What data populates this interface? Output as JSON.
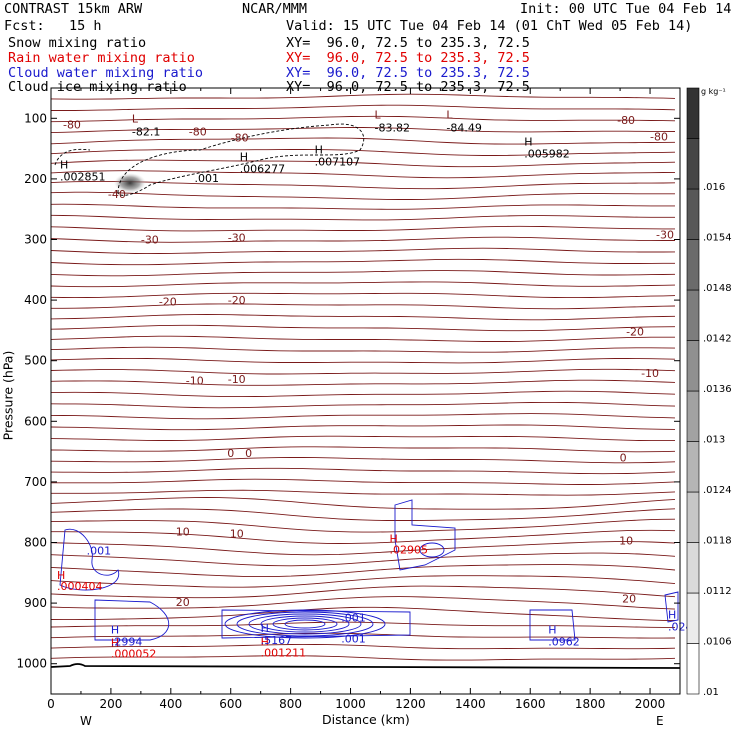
{
  "header": {
    "model": "CONTRAST 15km ARW",
    "org": "NCAR/MMM",
    "init": "Init: 00 UTC Tue 04 Feb 14",
    "fcst": "Fcst:   15 h",
    "valid": "Valid: 15 UTC Tue 04 Feb 14 (01 ChT Wed 05 Feb 14)"
  },
  "fields": [
    {
      "name": "Snow mixing ratio",
      "xy": "XY=  96.0, 72.5 to 235.3, 72.5",
      "color": "#000000"
    },
    {
      "name": "Rain water mixing ratio",
      "xy": "XY=  96.0, 72.5 to 235.3, 72.5",
      "color": "#e00000"
    },
    {
      "name": "Cloud water mixing ratio",
      "xy": "XY=  96.0, 72.5 to 235.3, 72.5",
      "color": "#1a1acd"
    },
    {
      "name": "Cloud ice mixing ratio",
      "xy": "XY=  96.0, 72.5 to 235.3, 72.5",
      "color": "#000000"
    }
  ],
  "chart_data": {
    "type": "cross-section contour",
    "xlabel": "Distance (km)",
    "ylabel": "Pressure (hPa)",
    "xlim": [
      0,
      2100
    ],
    "ylim": [
      1050,
      50
    ],
    "x_ticks": [
      0,
      200,
      400,
      600,
      800,
      1000,
      1200,
      1400,
      1600,
      1800,
      2000
    ],
    "y_ticks": [
      100,
      200,
      300,
      400,
      500,
      600,
      700,
      800,
      900,
      1000
    ],
    "x_end_labels": {
      "left": "W",
      "right": "E"
    },
    "colorbar": {
      "unit": "g kg⁻¹",
      "labels": [
        ".01",
        ".0106",
        ".0112",
        ".0118",
        ".0124",
        ".013",
        ".0136",
        ".0142",
        ".0148",
        ".0154",
        ".016"
      ],
      "color_low": "#ffffff",
      "color_high": "#333333"
    },
    "temperature_contours": {
      "color": "#7a1a1a",
      "labels": [
        {
          "x": 70,
          "p": 110,
          "text": "-80"
        },
        {
          "x": 490,
          "p": 122,
          "text": "-80"
        },
        {
          "x": 630,
          "p": 132,
          "text": "-80"
        },
        {
          "x": 1920,
          "p": 103,
          "text": "-80"
        },
        {
          "x": 2030,
          "p": 130,
          "text": "-80"
        },
        {
          "x": 220,
          "p": 225,
          "text": "-40"
        },
        {
          "x": 330,
          "p": 300,
          "text": "-30"
        },
        {
          "x": 620,
          "p": 297,
          "text": "-30"
        },
        {
          "x": 2050,
          "p": 292,
          "text": "-30"
        },
        {
          "x": 390,
          "p": 402,
          "text": "-20"
        },
        {
          "x": 620,
          "p": 400,
          "text": "-20"
        },
        {
          "x": 1950,
          "p": 452,
          "text": "-20"
        },
        {
          "x": 480,
          "p": 533,
          "text": "-10"
        },
        {
          "x": 620,
          "p": 530,
          "text": "-10"
        },
        {
          "x": 2000,
          "p": 520,
          "text": "-10"
        },
        {
          "x": 600,
          "p": 652,
          "text": "0"
        },
        {
          "x": 660,
          "p": 652,
          "text": "0"
        },
        {
          "x": 1910,
          "p": 660,
          "text": "0"
        },
        {
          "x": 440,
          "p": 782,
          "text": "10"
        },
        {
          "x": 620,
          "p": 785,
          "text": "10"
        },
        {
          "x": 1920,
          "p": 797,
          "text": "10"
        },
        {
          "x": 440,
          "p": 898,
          "text": "20"
        },
        {
          "x": 1930,
          "p": 892,
          "text": "20"
        }
      ],
      "extrema": [
        {
          "kind": "L",
          "x": 270,
          "p": 107,
          "value": "-82.1"
        },
        {
          "kind": "L",
          "x": 1080,
          "p": 100,
          "value": "-83.82"
        },
        {
          "kind": "L",
          "x": 1320,
          "p": 100,
          "value": "-84.49"
        }
      ]
    },
    "ice_maxima": [
      {
        "kind": "H",
        "x": 30,
        "p": 183,
        "value": ".002851"
      },
      {
        "kind": "H",
        "x": 630,
        "p": 170,
        "value": ".006277"
      },
      {
        "kind": "H",
        "x": 880,
        "p": 158,
        "value": ".007107"
      },
      {
        "kind": "H",
        "x": 1580,
        "p": 145,
        "value": ".005982"
      }
    ],
    "ice_contour_label": {
      "x": 520,
      "p": 205,
      "text": ".001"
    },
    "rain_maxima": [
      {
        "kind": "H",
        "x": 20,
        "p": 860,
        "value": ".000404"
      },
      {
        "kind": "H",
        "x": 1130,
        "p": 800,
        "value": ".02905"
      },
      {
        "kind": "H",
        "x": 200,
        "p": 972,
        "value": ".000052"
      },
      {
        "kind": "H",
        "x": 700,
        "p": 970,
        "value": ".001211"
      }
    ],
    "cloud_water_maxima": [
      {
        "kind": "H",
        "x": 200,
        "p": 950,
        "value": ".2994"
      },
      {
        "kind": "H",
        "x": 700,
        "p": 948,
        "value": ".5167"
      },
      {
        "kind": "H",
        "x": 1660,
        "p": 950,
        "value": ".0962"
      },
      {
        "kind": "H",
        "x": 2060,
        "p": 925,
        "value": ".024"
      }
    ],
    "cloud_water_labels": [
      {
        "x": 160,
        "p": 820,
        "text": ".001"
      },
      {
        "x": 1010,
        "p": 930,
        "text": ".001"
      },
      {
        "x": 1010,
        "p": 965,
        "text": ".001"
      }
    ]
  }
}
